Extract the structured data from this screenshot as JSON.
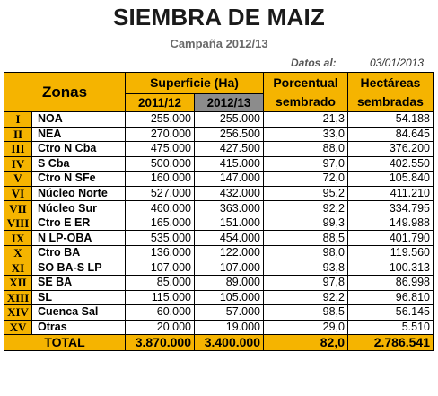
{
  "title": "SIEMBRA DE MAIZ",
  "subtitle": "Campaña 2012/13",
  "datos": {
    "label": "Datos al:",
    "date": "03/01/2013"
  },
  "headers": {
    "zonas": "Zonas",
    "superficie": "Superficie (Ha)",
    "y1": "2011/12",
    "y2": "2012/13",
    "porcentual_1": "Porcentual",
    "porcentual_2": "sembrado",
    "hectareas_1": "Hectáreas",
    "hectareas_2": "sembradas"
  },
  "rows": [
    {
      "num": "I",
      "zona": "NOA",
      "sup1": "255.000",
      "sup2": "255.000",
      "pct": "21,3",
      "ha": "54.188"
    },
    {
      "num": "II",
      "zona": "NEA",
      "sup1": "270.000",
      "sup2": "256.500",
      "pct": "33,0",
      "ha": "84.645"
    },
    {
      "num": "III",
      "zona": "Ctro N Cba",
      "sup1": "475.000",
      "sup2": "427.500",
      "pct": "88,0",
      "ha": "376.200"
    },
    {
      "num": "IV",
      "zona": "S Cba",
      "sup1": "500.000",
      "sup2": "415.000",
      "pct": "97,0",
      "ha": "402.550"
    },
    {
      "num": "V",
      "zona": "Ctro N SFe",
      "sup1": "160.000",
      "sup2": "147.000",
      "pct": "72,0",
      "ha": "105.840"
    },
    {
      "num": "VI",
      "zona": "Núcleo Norte",
      "sup1": "527.000",
      "sup2": "432.000",
      "pct": "95,2",
      "ha": "411.210"
    },
    {
      "num": "VII",
      "zona": "Núcleo Sur",
      "sup1": "460.000",
      "sup2": "363.000",
      "pct": "92,2",
      "ha": "334.795"
    },
    {
      "num": "VIII",
      "zona": "Ctro E ER",
      "sup1": "165.000",
      "sup2": "151.000",
      "pct": "99,3",
      "ha": "149.988"
    },
    {
      "num": "IX",
      "zona": "N LP-OBA",
      "sup1": "535.000",
      "sup2": "454.000",
      "pct": "88,5",
      "ha": "401.790"
    },
    {
      "num": "X",
      "zona": "Ctro BA",
      "sup1": "136.000",
      "sup2": "122.000",
      "pct": "98,0",
      "ha": "119.560"
    },
    {
      "num": "XI",
      "zona": "SO BA-S LP",
      "sup1": "107.000",
      "sup2": "107.000",
      "pct": "93,8",
      "ha": "100.313"
    },
    {
      "num": "XII",
      "zona": "SE BA",
      "sup1": "85.000",
      "sup2": "89.000",
      "pct": "97,8",
      "ha": "86.998"
    },
    {
      "num": "XIII",
      "zona": "SL",
      "sup1": "115.000",
      "sup2": "105.000",
      "pct": "92,2",
      "ha": "96.810"
    },
    {
      "num": "XIV",
      "zona": "Cuenca Sal",
      "sup1": "60.000",
      "sup2": "57.000",
      "pct": "98,5",
      "ha": "56.145"
    },
    {
      "num": "XV",
      "zona": "Otras",
      "sup1": "20.000",
      "sup2": "19.000",
      "pct": "29,0",
      "ha": "5.510"
    }
  ],
  "total": {
    "label": "TOTAL",
    "sup1": "3.870.000",
    "sup2": "3.400.000",
    "pct": "82,0",
    "ha": "2.786.541"
  },
  "colors": {
    "header_bg": "#f5b400",
    "year2_bg": "#8c8c8c"
  }
}
